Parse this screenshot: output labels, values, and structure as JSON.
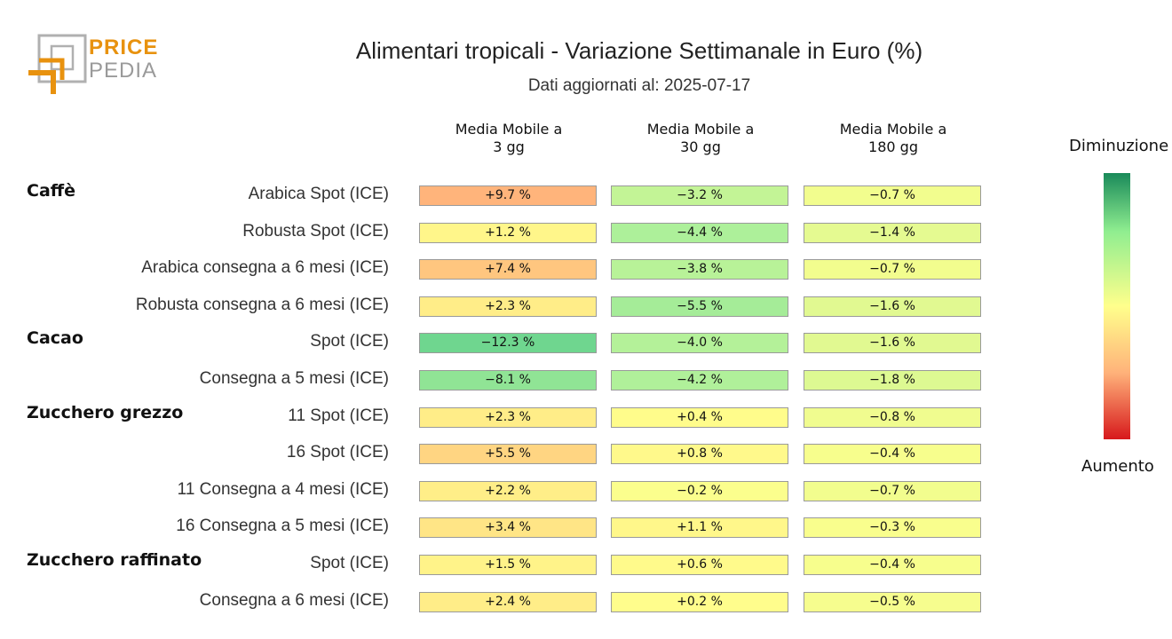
{
  "logo": {
    "line1": "PRICE",
    "line2": "PEDIA",
    "color_orange": "#e8920f",
    "color_gray": "#9a9a9a"
  },
  "chart_data": {
    "type": "table",
    "title": "Alimentari tropicali - Variazione Settimanale in Euro (%)",
    "subtitle": "Dati aggiornati al: 2025-07-17",
    "columns": [
      "Media Mobile a\n3 gg",
      "Media Mobile a\n30 gg",
      "Media Mobile a\n180 gg"
    ],
    "unit": "%",
    "groups": [
      {
        "name": "Caffè",
        "rows": [
          {
            "label": "Arabica Spot (ICE)",
            "values": [
              9.7,
              -3.2,
              -0.7
            ]
          },
          {
            "label": "Robusta Spot (ICE)",
            "values": [
              1.2,
              -4.4,
              -1.4
            ]
          },
          {
            "label": "Arabica consegna a 6 mesi (ICE)",
            "values": [
              7.4,
              -3.8,
              -0.7
            ]
          },
          {
            "label": "Robusta consegna a 6 mesi (ICE)",
            "values": [
              2.3,
              -5.5,
              -1.6
            ]
          }
        ]
      },
      {
        "name": "Cacao",
        "rows": [
          {
            "label": "Spot (ICE)",
            "values": [
              -12.3,
              -4.0,
              -1.6
            ]
          },
          {
            "label": "Consegna a 5 mesi (ICE)",
            "values": [
              -8.1,
              -4.2,
              -1.8
            ]
          }
        ]
      },
      {
        "name": "Zucchero grezzo",
        "rows": [
          {
            "label": "11 Spot (ICE)",
            "values": [
              2.3,
              0.4,
              -0.8
            ]
          },
          {
            "label": "16 Spot (ICE)",
            "values": [
              5.5,
              0.8,
              -0.4
            ]
          },
          {
            "label": "11 Consegna a 4 mesi (ICE)",
            "values": [
              2.2,
              -0.2,
              -0.7
            ]
          },
          {
            "label": "16 Consegna a 5 mesi (ICE)",
            "values": [
              3.4,
              1.1,
              -0.3
            ]
          }
        ]
      },
      {
        "name": "Zucchero raffinato",
        "rows": [
          {
            "label": "Spot (ICE)",
            "values": [
              1.5,
              0.6,
              -0.4
            ]
          },
          {
            "label": "Consegna a 6 mesi (ICE)",
            "values": [
              2.4,
              0.2,
              -0.5
            ]
          }
        ]
      }
    ],
    "legend": {
      "top_label": "Diminuzione",
      "bottom_label": "Aumento",
      "colors": [
        "#1a8a5a",
        "#90ee90",
        "#ffff8c",
        "#ffb27a",
        "#d7191c"
      ]
    }
  }
}
